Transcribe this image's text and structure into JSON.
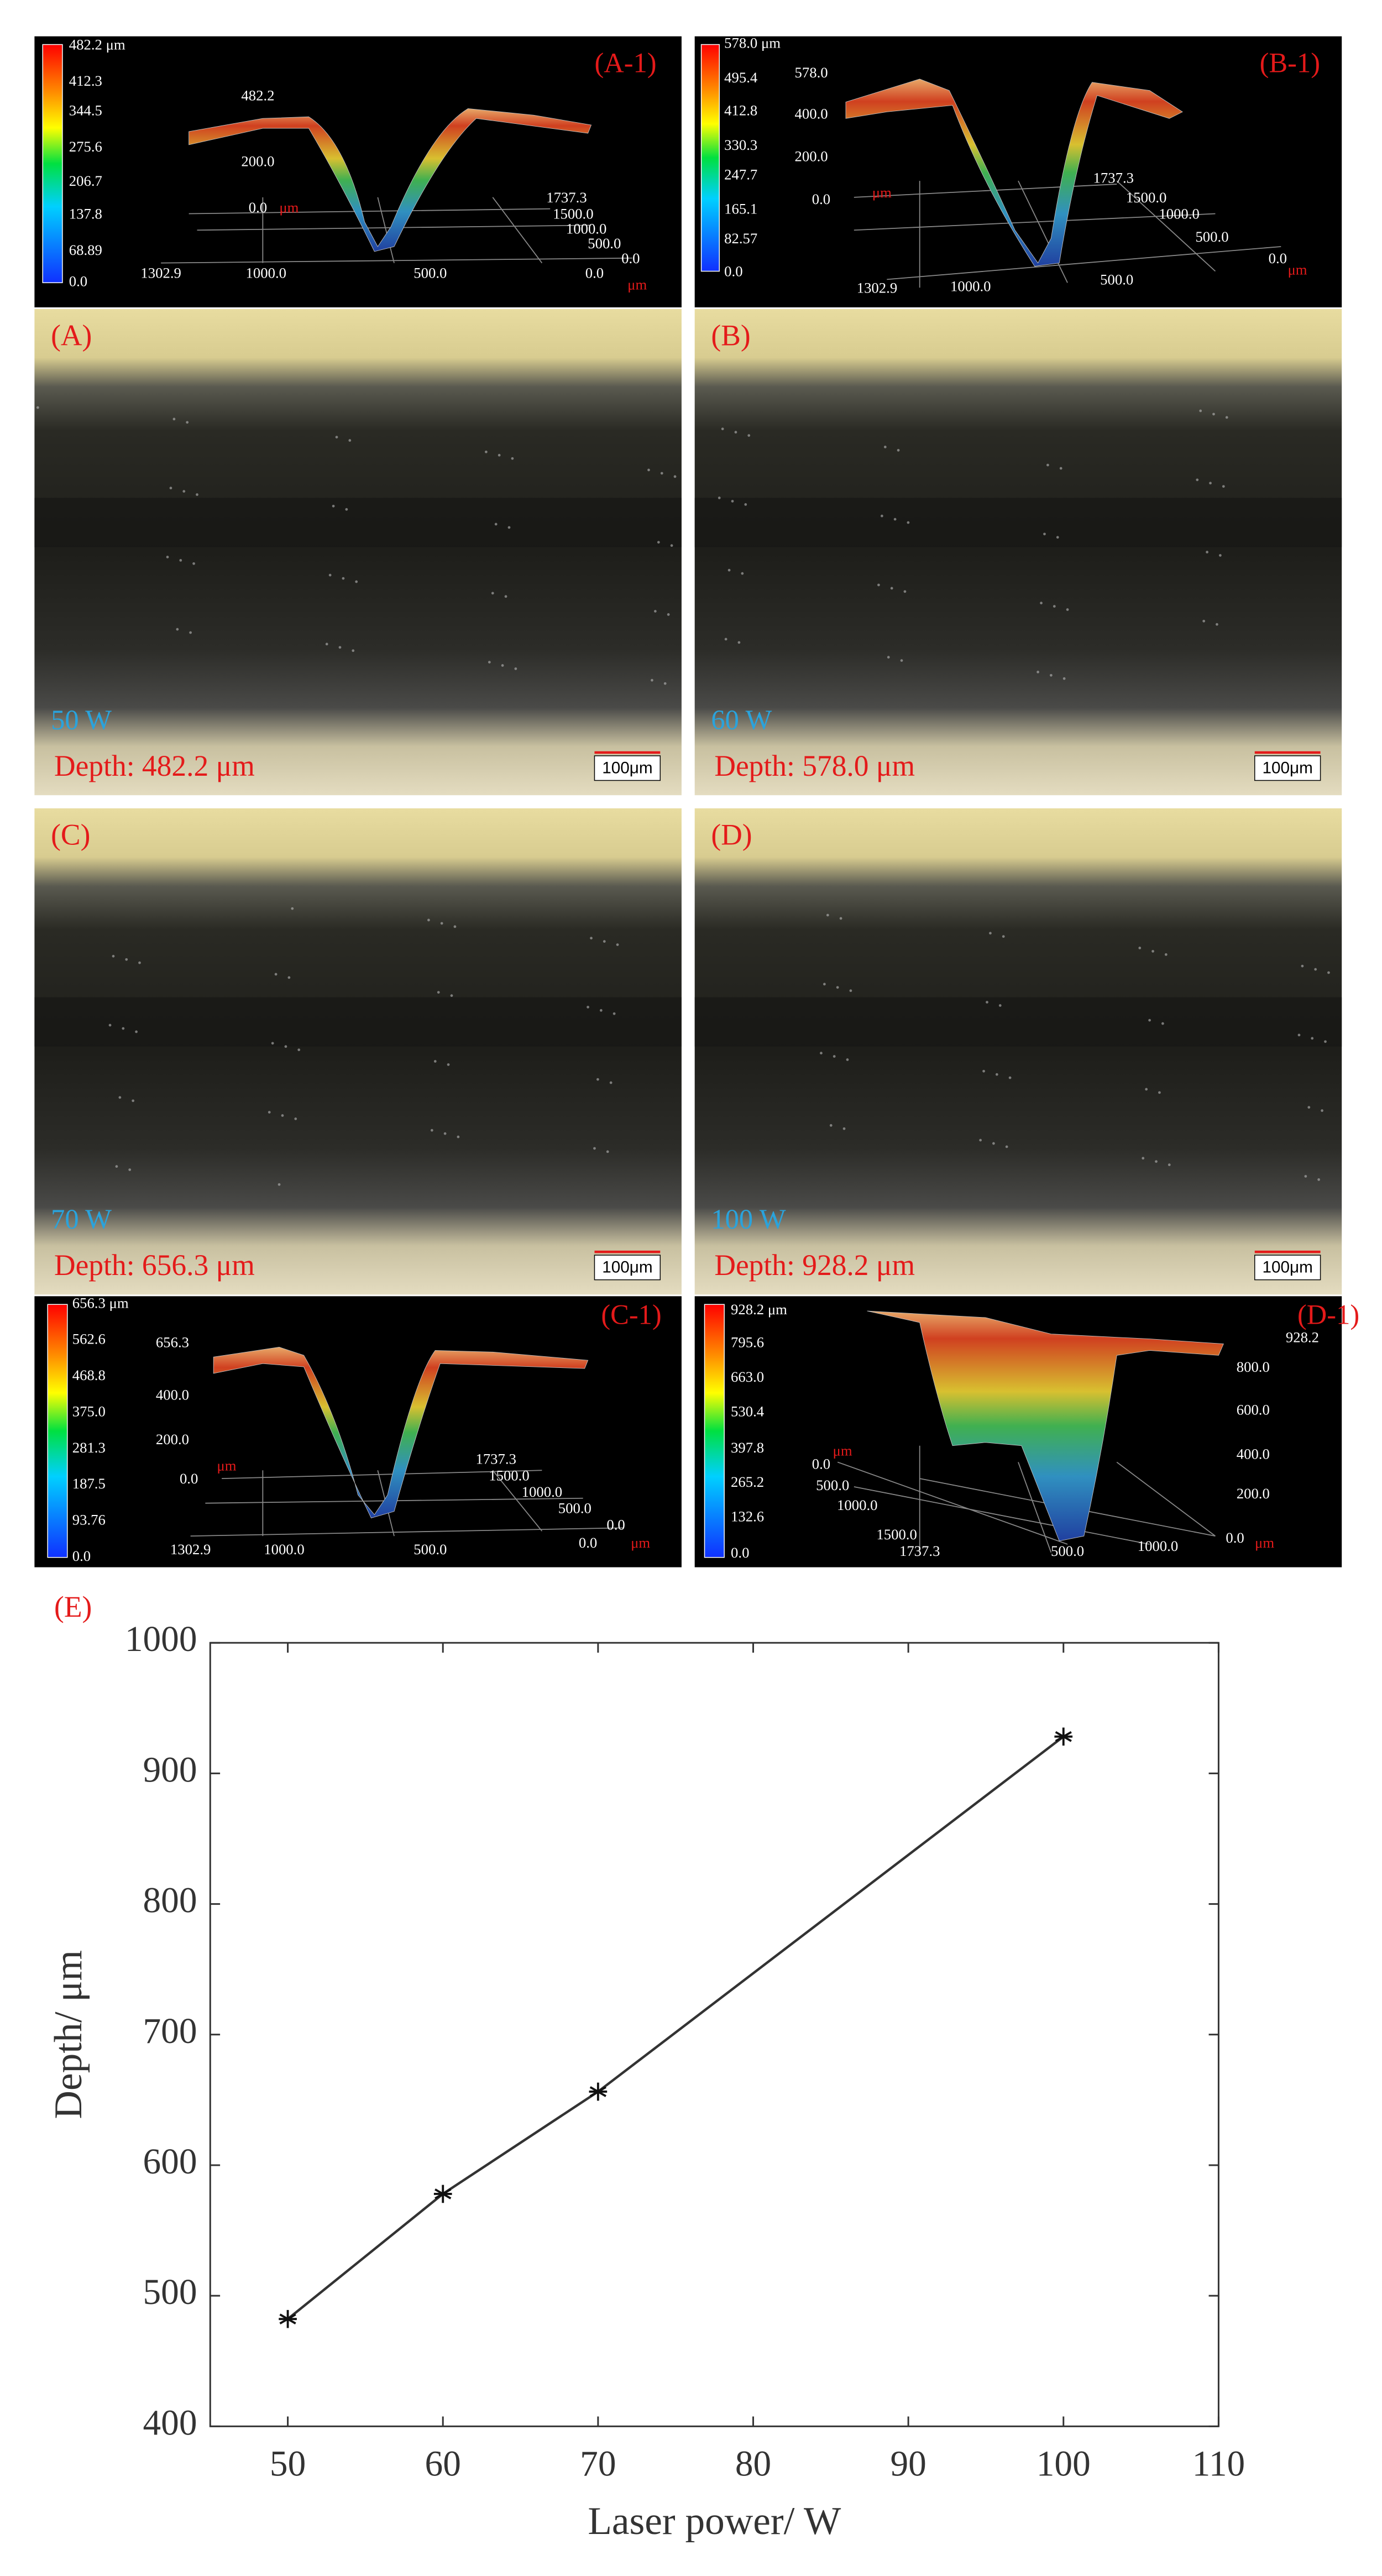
{
  "profiles": [
    {
      "label": "(A-1)",
      "colorbar": [
        "482.2 μm",
        "412.3",
        "344.5",
        "275.6",
        "206.7",
        "137.8",
        "68.89",
        "0.0"
      ],
      "axis_texts": [
        "482.2",
        "200.0",
        "0.0",
        "μm",
        "1737.3",
        "1500.0",
        "1000.0",
        "500.0",
        "0.0",
        "0.0",
        "μm",
        "1302.9",
        "1000.0",
        "500.0"
      ]
    },
    {
      "label": "(B-1)",
      "colorbar": [
        "578.0 μm",
        "495.4",
        "412.8",
        "330.3",
        "247.7",
        "165.1",
        "82.57",
        "0.0"
      ],
      "axis_texts": [
        "578.0",
        "400.0",
        "200.0",
        "0.0",
        "μm",
        "1737.3",
        "1500.0",
        "1000.0",
        "500.0",
        "0.0",
        "μm",
        "1302.9",
        "1000.0",
        "500.0"
      ]
    },
    {
      "label": "(C-1)",
      "colorbar": [
        "656.3 μm",
        "562.6",
        "468.8",
        "375.0",
        "281.3",
        "187.5",
        "93.76",
        "0.0"
      ],
      "axis_texts": [
        "656.3",
        "400.0",
        "200.0",
        "0.0",
        "μm",
        "1737.3",
        "1500.0",
        "1000.0",
        "500.0",
        "0.0",
        "0.0",
        "μm",
        "1302.9",
        "1000.0",
        "500.0"
      ]
    },
    {
      "label": "(D-1)",
      "colorbar": [
        "928.2 μm",
        "795.6",
        "663.0",
        "530.4",
        "397.8",
        "265.2",
        "132.6",
        "0.0"
      ],
      "axis_texts": [
        "928.2",
        "800.0",
        "600.0",
        "400.0",
        "200.0",
        "0.0",
        "μm",
        "μm",
        "0.0",
        "500.0",
        "1000.0",
        "1500.0",
        "1737.3",
        "500.0",
        "1000.0"
      ]
    }
  ],
  "photos": [
    {
      "label": "(A)",
      "power": "50 W",
      "depth": "Depth: 482.2 μm",
      "scale": "100μm"
    },
    {
      "label": "(B)",
      "power": "60 W",
      "depth": "Depth: 578.0 μm",
      "scale": "100μm"
    },
    {
      "label": "(C)",
      "power": "70 W",
      "depth": "Depth: 656.3 μm",
      "scale": "100μm"
    },
    {
      "label": "(D)",
      "power": "100 W",
      "depth": "Depth: 928.2 μm",
      "scale": "100μm"
    }
  ],
  "chart_data": {
    "type": "line",
    "label": "(E)",
    "xlabel": "Laser power/ W",
    "ylabel": "Depth/ μm",
    "x": [
      50,
      60,
      70,
      100
    ],
    "values": [
      482.2,
      578.0,
      656.3,
      928.2
    ],
    "color": "#333333",
    "marker": "asterisk",
    "xlim": [
      45,
      110
    ],
    "ylim": [
      400,
      1000
    ],
    "xticks": [
      50,
      60,
      70,
      80,
      90,
      100,
      110
    ],
    "yticks": [
      400,
      500,
      600,
      700,
      800,
      900,
      1000
    ],
    "grid": false
  }
}
